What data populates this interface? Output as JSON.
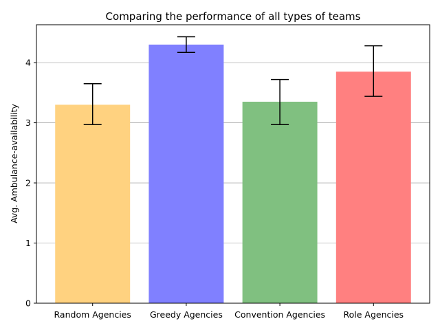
{
  "chart_data": {
    "type": "bar",
    "title": "Comparing the performance of all types of teams",
    "xlabel": "",
    "ylabel": "Avg. Ambulance-availability",
    "categories": [
      "Random Agencies",
      "Greedy Agencies",
      "Convention Agencies",
      "Role Agencies"
    ],
    "values": [
      3.3,
      4.3,
      3.35,
      3.85
    ],
    "error_low": [
      2.97,
      4.17,
      2.97,
      3.44
    ],
    "error_high": [
      3.65,
      4.43,
      3.72,
      4.28
    ],
    "colors": [
      "#ffd280",
      "#8080ff",
      "#80c080",
      "#ff8080"
    ],
    "error_color": "#000000",
    "grid_color": "#b0b0b0",
    "ylim": [
      0,
      4.63
    ],
    "yticks": [
      0,
      1,
      2,
      3,
      4
    ],
    "grid": "horizontal",
    "legend": "none"
  }
}
